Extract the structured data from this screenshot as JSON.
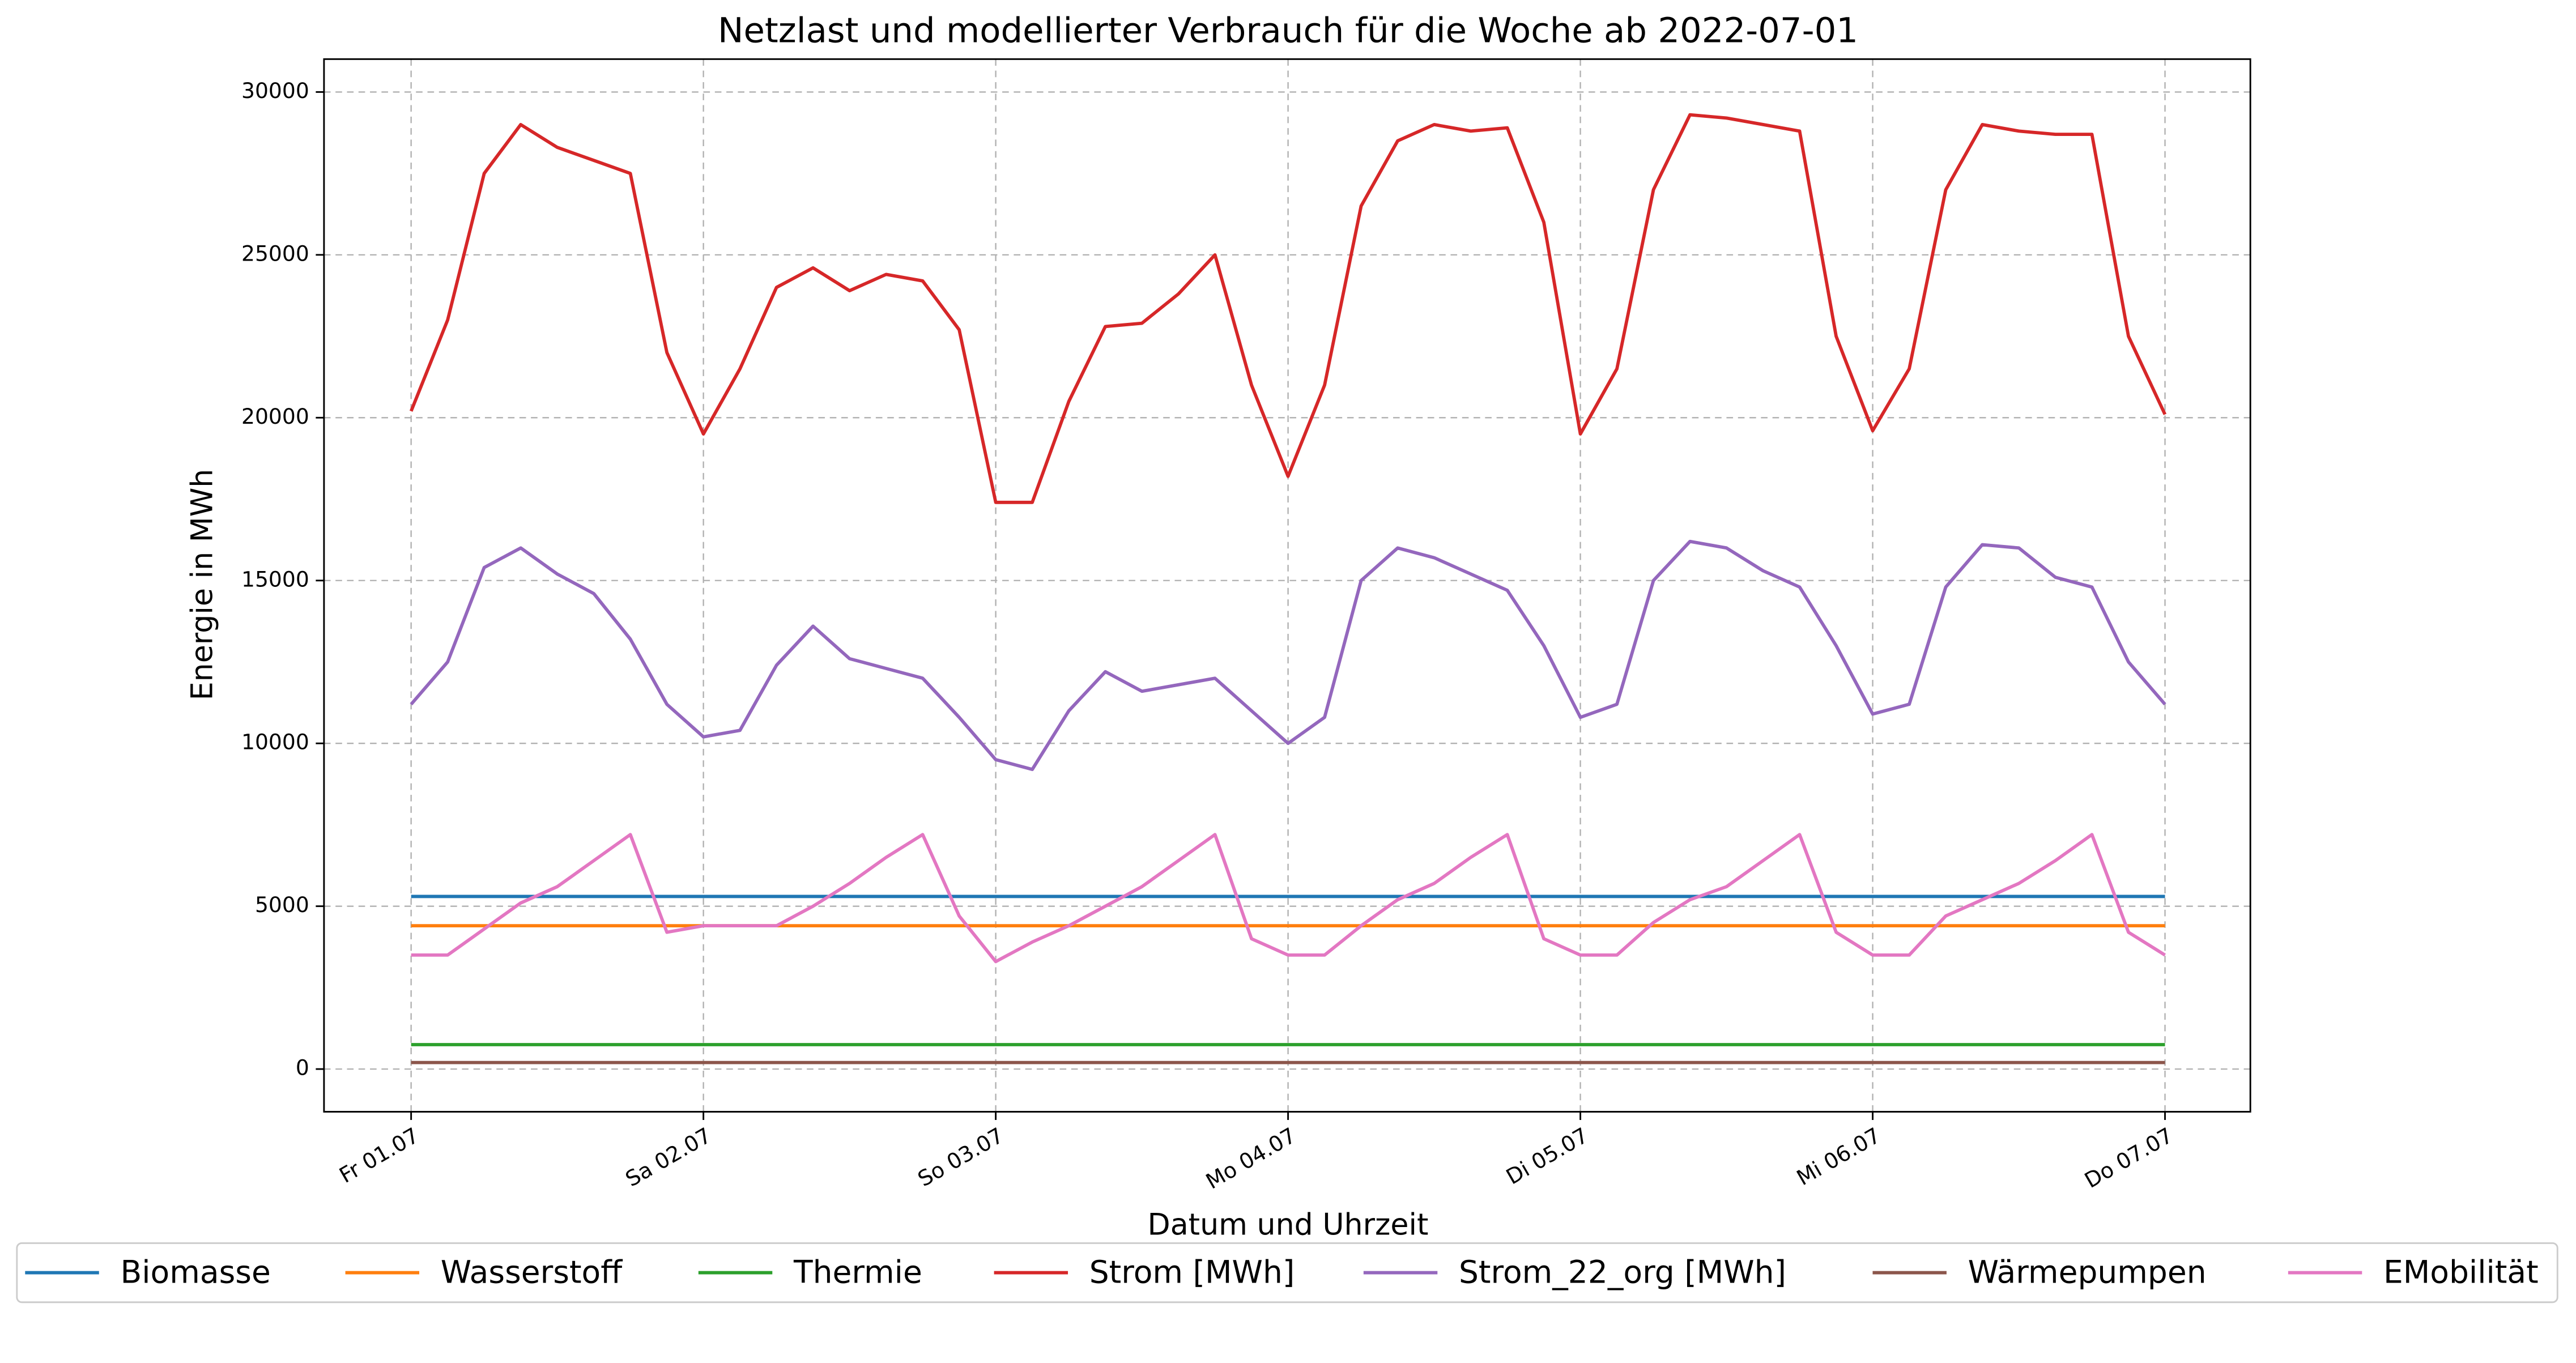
{
  "chart_data": {
    "type": "line",
    "title": "Netzlast und modellierter Verbrauch für die Woche ab 2022-07-01",
    "xlabel": "Datum und Uhrzeit",
    "ylabel": "Energie in MWh",
    "x": [
      0,
      0.125,
      0.25,
      0.375,
      0.5,
      0.625,
      0.75,
      0.875,
      1,
      1.125,
      1.25,
      1.375,
      1.5,
      1.625,
      1.75,
      1.875,
      2,
      2.125,
      2.25,
      2.375,
      2.5,
      2.625,
      2.75,
      2.875,
      3,
      3.125,
      3.25,
      3.375,
      3.5,
      3.625,
      3.75,
      3.875,
      4,
      4.125,
      4.25,
      4.375,
      4.5,
      4.625,
      4.75,
      4.875,
      5,
      5.125,
      5.25,
      5.375,
      5.5,
      5.625,
      5.75,
      5.875,
      6
    ],
    "xlim": [
      -0.298,
      6.292
    ],
    "xticks": [
      {
        "value": 0,
        "label": "Fr 01.07"
      },
      {
        "value": 1,
        "label": "Sa 02.07"
      },
      {
        "value": 2,
        "label": "So 03.07"
      },
      {
        "value": 3,
        "label": "Mo 04.07"
      },
      {
        "value": 4,
        "label": "Di 05.07"
      },
      {
        "value": 5,
        "label": "Mi 06.07"
      },
      {
        "value": 6,
        "label": "Do 07.07"
      }
    ],
    "ylim": [
      -1311,
      31010
    ],
    "yticks": [
      0,
      5000,
      10000,
      15000,
      20000,
      25000,
      30000
    ],
    "grid": true,
    "legend": "lower center",
    "series": [
      {
        "name": "Biomasse",
        "color": "#1f77b4",
        "values": [
          5300,
          5300,
          5300,
          5300,
          5300,
          5300,
          5300,
          5300,
          5300,
          5300,
          5300,
          5300,
          5300,
          5300,
          5300,
          5300,
          5300,
          5300,
          5300,
          5300,
          5300,
          5300,
          5300,
          5300,
          5300,
          5300,
          5300,
          5300,
          5300,
          5300,
          5300,
          5300,
          5300,
          5300,
          5300,
          5300,
          5300,
          5300,
          5300,
          5300,
          5300,
          5300,
          5300,
          5300,
          5300,
          5300,
          5300,
          5300,
          5300
        ]
      },
      {
        "name": "Wasserstoff",
        "color": "#ff7f0e",
        "values": [
          4400,
          4400,
          4400,
          4400,
          4400,
          4400,
          4400,
          4400,
          4400,
          4400,
          4400,
          4400,
          4400,
          4400,
          4400,
          4400,
          4400,
          4400,
          4400,
          4400,
          4400,
          4400,
          4400,
          4400,
          4400,
          4400,
          4400,
          4400,
          4400,
          4400,
          4400,
          4400,
          4400,
          4400,
          4400,
          4400,
          4400,
          4400,
          4400,
          4400,
          4400,
          4400,
          4400,
          4400,
          4400,
          4400,
          4400,
          4400,
          4400
        ]
      },
      {
        "name": "Thermie",
        "color": "#2ca02c",
        "values": [
          750,
          750,
          750,
          750,
          750,
          750,
          750,
          750,
          750,
          750,
          750,
          750,
          750,
          750,
          750,
          750,
          750,
          750,
          750,
          750,
          750,
          750,
          750,
          750,
          750,
          750,
          750,
          750,
          750,
          750,
          750,
          750,
          750,
          750,
          750,
          750,
          750,
          750,
          750,
          750,
          750,
          750,
          750,
          750,
          750,
          750,
          750,
          750,
          750
        ]
      },
      {
        "name": "Strom [MWh]",
        "color": "#d62728",
        "values": [
          20200,
          23000,
          27500,
          29000,
          28300,
          27900,
          27500,
          22000,
          19500,
          21500,
          24000,
          24600,
          23900,
          24400,
          24200,
          22700,
          17400,
          17400,
          20500,
          22800,
          22900,
          23800,
          25000,
          21000,
          18200,
          21000,
          26500,
          28500,
          29000,
          28800,
          28900,
          26000,
          19500,
          21500,
          27000,
          29300,
          29200,
          29000,
          28800,
          22500,
          19600,
          21500,
          27000,
          29000,
          28800,
          28700,
          28700,
          22500,
          20100
        ]
      },
      {
        "name": "Strom_22_org [MWh]",
        "color": "#9467bd",
        "values": [
          11200,
          12500,
          15400,
          16000,
          15200,
          14600,
          13200,
          11200,
          10200,
          10400,
          12400,
          13600,
          12600,
          12300,
          12000,
          10800,
          9500,
          9200,
          11000,
          12200,
          11600,
          11800,
          12000,
          11000,
          10000,
          10800,
          15000,
          16000,
          15700,
          15200,
          14700,
          13000,
          10800,
          11200,
          15000,
          16200,
          16000,
          15300,
          14800,
          13000,
          10900,
          11200,
          14800,
          16100,
          16000,
          15100,
          14800,
          12500,
          11200
        ]
      },
      {
        "name": "Wärmepumpen",
        "color": "#8c564b",
        "values": [
          200,
          200,
          200,
          200,
          200,
          200,
          200,
          200,
          200,
          200,
          200,
          200,
          200,
          200,
          200,
          200,
          200,
          200,
          200,
          200,
          200,
          200,
          200,
          200,
          200,
          200,
          200,
          200,
          200,
          200,
          200,
          200,
          200,
          200,
          200,
          200,
          200,
          200,
          200,
          200,
          200,
          200,
          200,
          200,
          200,
          200,
          200,
          200,
          200
        ]
      },
      {
        "name": "EMobilität",
        "color": "#e377c2",
        "values": [
          3500,
          3500,
          4300,
          5100,
          5600,
          6400,
          7200,
          4200,
          4400,
          4400,
          4400,
          5000,
          5700,
          6500,
          7200,
          4700,
          3300,
          3900,
          4400,
          5000,
          5600,
          6400,
          7200,
          4000,
          3500,
          3500,
          4400,
          5200,
          5700,
          6500,
          7200,
          4000,
          3500,
          3500,
          4500,
          5200,
          5600,
          6400,
          7200,
          4200,
          3500,
          3500,
          4700,
          5200,
          5700,
          6400,
          7200,
          4200,
          3500
        ]
      }
    ]
  }
}
